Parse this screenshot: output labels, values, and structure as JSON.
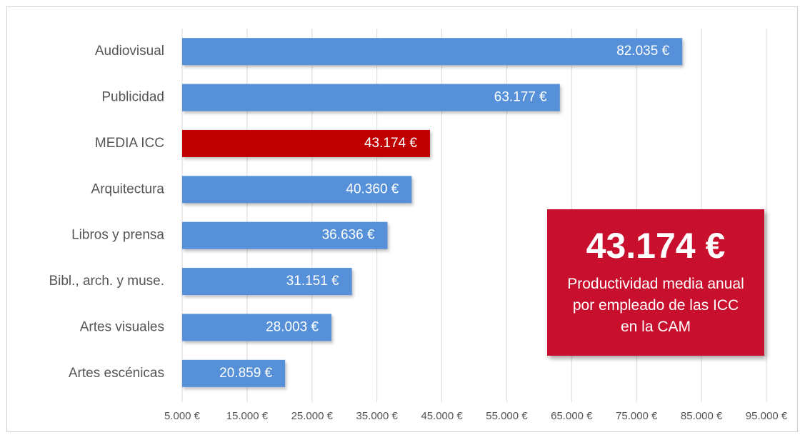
{
  "chart_data": {
    "type": "barh",
    "categories": [
      "Audiovisual",
      "Publicidad",
      "MEDIA ICC",
      "Arquitectura",
      "Libros y prensa",
      "Bibl., arch. y muse.",
      "Artes visuales",
      "Artes escénicas"
    ],
    "values": [
      82035,
      63177,
      43174,
      40360,
      36636,
      31151,
      28003,
      20859
    ],
    "value_labels": [
      "82.035 €",
      "63.177 €",
      "43.174 €",
      "40.360 €",
      "36.636 €",
      "31.151 €",
      "28.003 €",
      "20.859 €"
    ],
    "colors": [
      "#5590d8",
      "#5590d8",
      "#c00000",
      "#5590d8",
      "#5590d8",
      "#5590d8",
      "#5590d8",
      "#5590d8"
    ],
    "xlim": [
      5000,
      95000
    ],
    "xticks": [
      {
        "value": 5000,
        "label": "5.000 €"
      },
      {
        "value": 15000,
        "label": "15.000 €"
      },
      {
        "value": 25000,
        "label": "25.000 €"
      },
      {
        "value": 35000,
        "label": "35.000 €"
      },
      {
        "value": 45000,
        "label": "45.000 €"
      },
      {
        "value": 55000,
        "label": "55.000 €"
      },
      {
        "value": 65000,
        "label": "65.000 €"
      },
      {
        "value": 75000,
        "label": "75.000 €"
      },
      {
        "value": 85000,
        "label": "85.000 €"
      },
      {
        "value": 95000,
        "label": "95.000 €"
      }
    ],
    "grid": true,
    "annotation": {
      "headline": "43.174 €",
      "text": "Productividad media anual por empleado de las ICC en la CAM",
      "color": "#c8102e"
    }
  }
}
